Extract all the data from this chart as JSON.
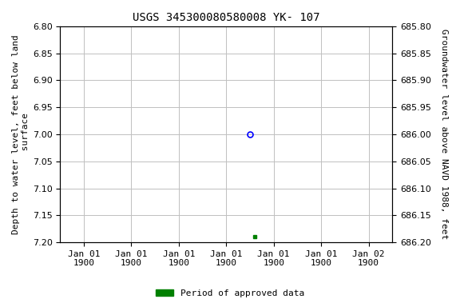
{
  "title": "USGS 345300080580008 YK- 107",
  "ylabel_left": "Depth to water level, feet below land\n surface",
  "ylabel_right": "Groundwater level above NAVD 1988, feet",
  "ylim_left": [
    6.8,
    7.2
  ],
  "ylim_right": [
    685.8,
    686.2
  ],
  "yticks_left": [
    6.8,
    6.85,
    6.9,
    6.95,
    7.0,
    7.05,
    7.1,
    7.15,
    7.2
  ],
  "yticks_right": [
    685.8,
    685.85,
    685.9,
    685.95,
    686.0,
    686.05,
    686.1,
    686.15,
    686.2
  ],
  "data_blue_x": 3.5,
  "data_blue_depth": 7.0,
  "data_green_x": 3.6,
  "data_green_depth": 7.19,
  "x_tick_positions": [
    0,
    1,
    2,
    3,
    4,
    5,
    6
  ],
  "x_tick_labels": [
    "Jan 01\n1900",
    "Jan 01\n1900",
    "Jan 01\n1900",
    "Jan 01\n1900",
    "Jan 01\n1900",
    "Jan 01\n1900",
    "Jan 02\n1900"
  ],
  "xlim": [
    -0.5,
    6.5
  ],
  "background_color": "#ffffff",
  "grid_color": "#c0c0c0",
  "title_fontsize": 10,
  "axis_fontsize": 8,
  "tick_fontsize": 8,
  "legend_label": "Period of approved data",
  "legend_color": "#008000"
}
